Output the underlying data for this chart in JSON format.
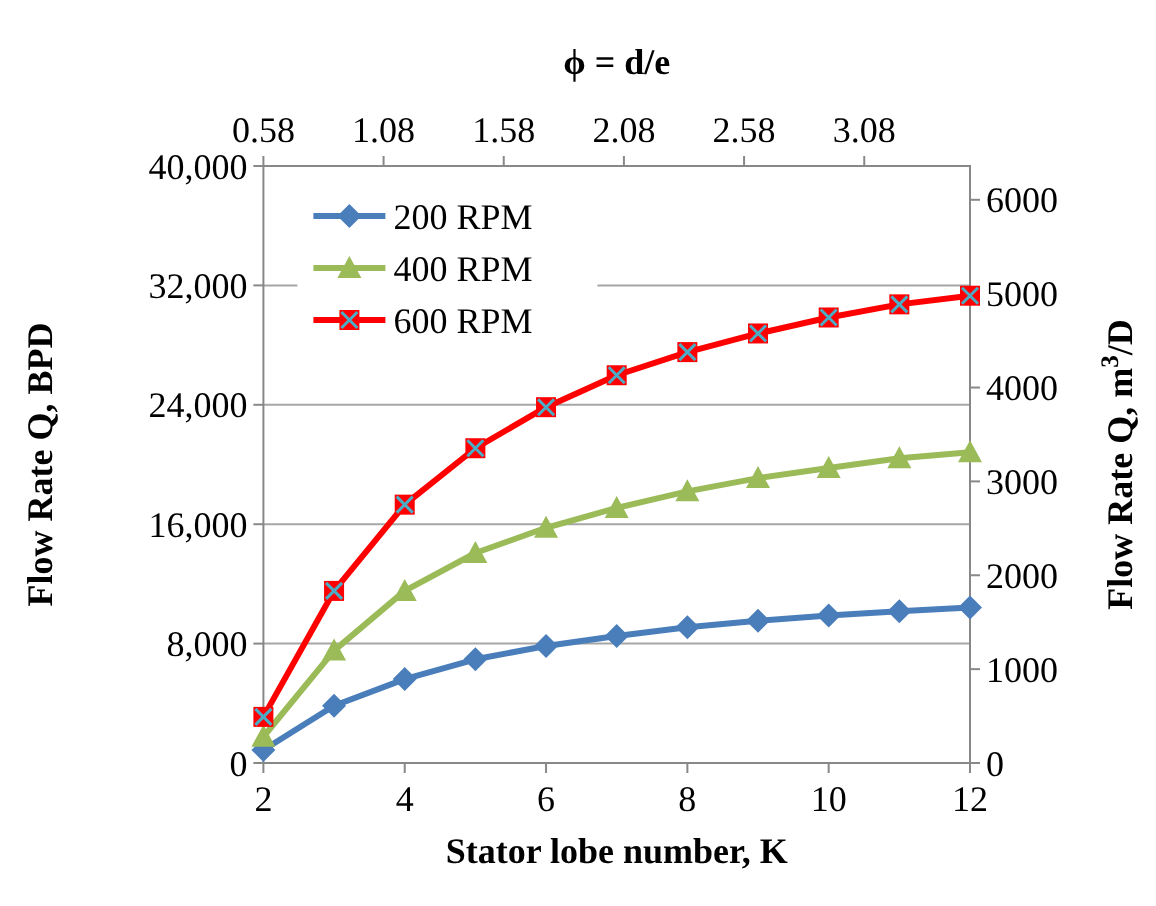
{
  "chart_data": {
    "type": "line",
    "xlabel": "Stator lobe number, K",
    "x2label": "ϕ = d/e",
    "ylabel": "Flow Rate Q, BPD",
    "y2label": "Flow Rate Q, m$^{3}$/D",
    "x": [
      2,
      3,
      4,
      5,
      6,
      7,
      8,
      9,
      10,
      11,
      12
    ],
    "xlim": [
      2,
      12
    ],
    "xticks": [
      2,
      4,
      6,
      8,
      10,
      12
    ],
    "x2lim": [
      0.58,
      3.52
    ],
    "x2ticks": [
      0.58,
      1.08,
      1.58,
      2.08,
      2.58,
      3.08
    ],
    "ylim": [
      0,
      40000
    ],
    "yticks": [
      0,
      {
        "value": 8000,
        "label": "8,000"
      },
      {
        "value": 16000,
        "label": "16,000"
      },
      {
        "value": 24000,
        "label": "24,000"
      },
      {
        "value": 32000,
        "label": "32,000"
      },
      {
        "value": 40000,
        "label": "40,000"
      }
    ],
    "y2lim": [
      0,
      6360
    ],
    "y2ticks": [
      0,
      1000,
      2000,
      3000,
      4000,
      5000,
      6000
    ],
    "grid": "y",
    "legend": "top left",
    "series": [
      {
        "name": "200 RPM",
        "color": "#4a7ebb",
        "marker": "diamond",
        "values": [
          870,
          3840,
          5620,
          6950,
          7840,
          8510,
          9090,
          9530,
          9890,
          10160,
          10420
        ]
      },
      {
        "name": "400 RPM",
        "color": "#9bbb59",
        "marker": "triangle",
        "values": [
          1760,
          7530,
          11530,
          14070,
          15760,
          17090,
          18200,
          19090,
          19760,
          20420,
          20820
        ]
      },
      {
        "name": "600 RPM",
        "color": "#ff0000",
        "marker": "square",
        "values": [
          3090,
          11530,
          17310,
          21090,
          23840,
          25980,
          27530,
          28780,
          29850,
          30730,
          31310
        ]
      }
    ]
  }
}
